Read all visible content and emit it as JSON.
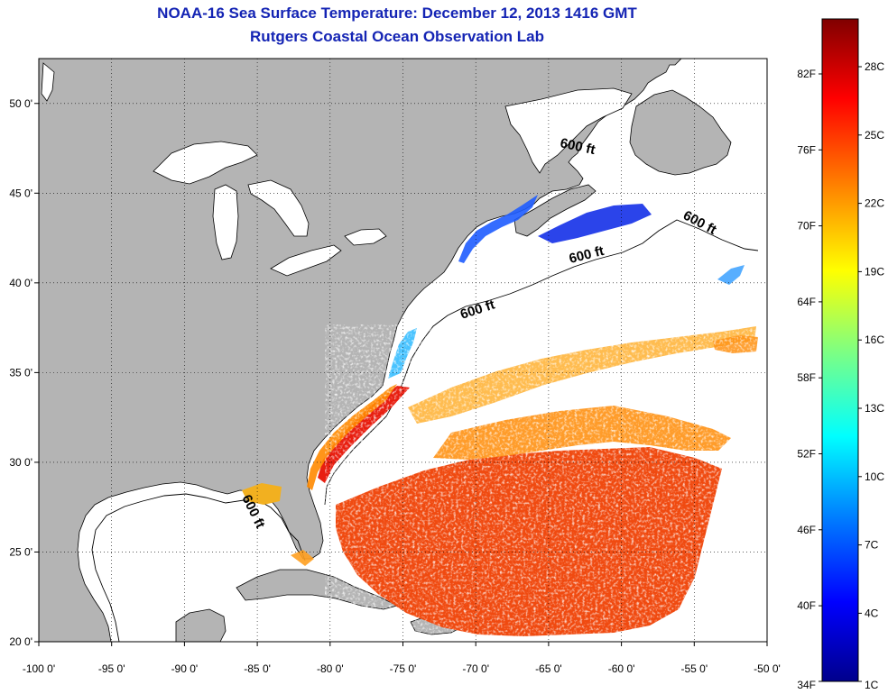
{
  "title": {
    "line1": "NOAA-16 Sea Surface Temperature:  December 12, 2013 1416 GMT",
    "line2": "Rutgers Coastal Ocean Observation Lab"
  },
  "map": {
    "lon_range": [
      -100,
      -50
    ],
    "lat_range": [
      20,
      52.5
    ],
    "lon_ticks": [
      "-100 0'",
      "-95 0'",
      "-90 0'",
      "-85 0'",
      "-80 0'",
      "-75 0'",
      "-70 0'",
      "-65 0'",
      "-60 0'",
      "-55 0'",
      "-50 0'"
    ],
    "lat_ticks": [
      "50 0'",
      "45 0'",
      "40 0'",
      "35 0'",
      "30 0'",
      "25 0'",
      "20 0'"
    ],
    "grid": "dotted",
    "land_color": "#b4b4b4",
    "no_data_color": "#ffffff",
    "contour_label": "600 ft"
  },
  "colorbar": {
    "colors": [
      "#00008c",
      "#0000ff",
      "#0080ff",
      "#00ffff",
      "#80ff80",
      "#ffff00",
      "#ff8000",
      "#ff0000",
      "#800000"
    ],
    "fahrenheit": [
      "82F",
      "76F",
      "70F",
      "64F",
      "58F",
      "52F",
      "46F",
      "40F",
      "34F"
    ],
    "celsius": [
      "28C",
      "25C",
      "22C",
      "19C",
      "16C",
      "13C",
      "10C",
      "7C",
      "4C",
      "1C"
    ]
  }
}
